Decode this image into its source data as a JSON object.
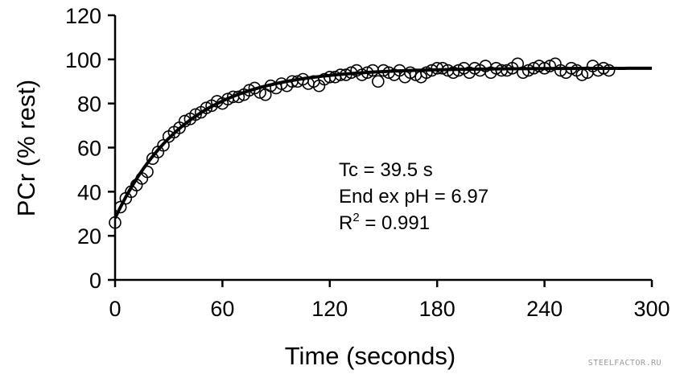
{
  "chart_data": {
    "type": "scatter",
    "title": "",
    "xlabel": "Time (seconds)",
    "ylabel": "PCr (% rest)",
    "xlim": [
      0,
      300
    ],
    "ylim": [
      0,
      120
    ],
    "xticks": [
      0,
      60,
      120,
      180,
      240,
      300
    ],
    "yticks": [
      0,
      20,
      40,
      60,
      80,
      100,
      120
    ],
    "grid": false,
    "legend": "none",
    "annotations": [
      "Tc = 39.5 s",
      "End ex pH = 6.97",
      "R",
      "2",
      " = 0.991"
    ],
    "series": [
      {
        "kind": "points",
        "marker": "open-circle",
        "x": [
          0,
          3,
          6,
          9,
          12,
          15,
          18,
          21,
          24,
          27,
          30,
          33,
          36,
          39,
          42,
          45,
          48,
          51,
          54,
          57,
          60,
          63,
          66,
          69,
          72,
          75,
          78,
          81,
          84,
          87,
          90,
          93,
          96,
          99,
          102,
          105,
          108,
          111,
          114,
          117,
          120,
          123,
          126,
          129,
          132,
          135,
          138,
          141,
          144,
          147,
          150,
          153,
          156,
          159,
          162,
          165,
          168,
          171,
          174,
          177,
          180,
          183,
          186,
          189,
          192,
          195,
          198,
          201,
          204,
          207,
          210,
          213,
          216,
          219,
          222,
          225,
          228,
          231,
          234,
          237,
          240,
          243,
          246,
          249,
          252,
          255,
          258,
          261,
          264,
          267,
          270,
          273,
          276
        ],
        "y": [
          26,
          33,
          37,
          40,
          43,
          46,
          49,
          55,
          58,
          61,
          65,
          67,
          69,
          72,
          73,
          75,
          76,
          78,
          79,
          81,
          80,
          82,
          83,
          83,
          84,
          86,
          87,
          85,
          84,
          88,
          87,
          89,
          88,
          90,
          90,
          91,
          89,
          90,
          88,
          91,
          92,
          92,
          93,
          93,
          94,
          95,
          93,
          94,
          95,
          90,
          95,
          94,
          93,
          95,
          92,
          94,
          93,
          92,
          94,
          95,
          96,
          96,
          95,
          94,
          95,
          96,
          94,
          96,
          95,
          97,
          94,
          96,
          95,
          95,
          96,
          98,
          94,
          95,
          96,
          97,
          96,
          97,
          98,
          95,
          94,
          96,
          95,
          93,
          94,
          97,
          95,
          96,
          95
        ]
      },
      {
        "kind": "fit-line",
        "model": "mono-exponential recovery",
        "y0": 28,
        "y_end": 96,
        "tau_s": 39.5,
        "x_range": [
          0,
          300
        ]
      }
    ]
  },
  "footer": {
    "watermark": "STEELFACTOR.RU"
  }
}
